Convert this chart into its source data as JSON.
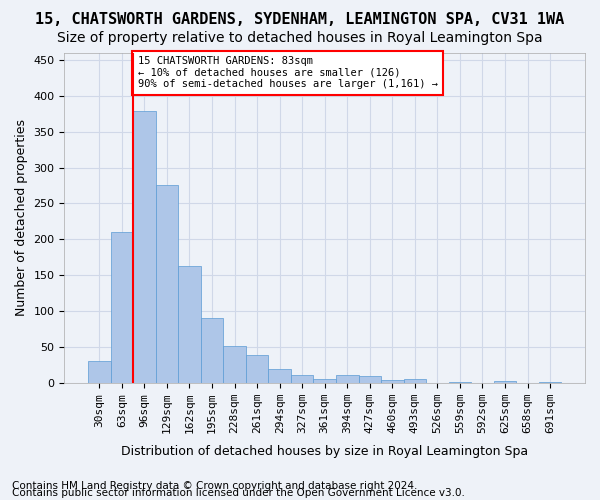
{
  "title": "15, CHATSWORTH GARDENS, SYDENHAM, LEAMINGTON SPA, CV31 1WA",
  "subtitle": "Size of property relative to detached houses in Royal Leamington Spa",
  "xlabel": "Distribution of detached houses by size in Royal Leamington Spa",
  "ylabel": "Number of detached properties",
  "footer1": "Contains HM Land Registry data © Crown copyright and database right 2024.",
  "footer2": "Contains public sector information licensed under the Open Government Licence v3.0.",
  "bar_values": [
    31,
    210,
    378,
    275,
    163,
    90,
    52,
    39,
    20,
    12,
    6,
    11,
    10,
    4,
    6,
    0,
    2,
    0,
    3,
    0,
    2
  ],
  "bin_labels": [
    "30sqm",
    "63sqm",
    "96sqm",
    "129sqm",
    "162sqm",
    "195sqm",
    "228sqm",
    "261sqm",
    "294sqm",
    "327sqm",
    "361sqm",
    "394sqm",
    "427sqm",
    "460sqm",
    "493sqm",
    "526sqm",
    "559sqm",
    "592sqm",
    "625sqm",
    "658sqm",
    "691sqm"
  ],
  "bar_color": "#aec6e8",
  "bar_edge_color": "#5b9bd5",
  "bar_edge_width": 0.5,
  "red_line_x": 1.5,
  "annotation_text": "15 CHATSWORTH GARDENS: 83sqm\n← 10% of detached houses are smaller (126)\n90% of semi-detached houses are larger (1,161) →",
  "annotation_box_color": "white",
  "annotation_box_edge": "red",
  "ylim": [
    0,
    460
  ],
  "yticks": [
    0,
    50,
    100,
    150,
    200,
    250,
    300,
    350,
    400,
    450
  ],
  "grid_color": "#d0d8e8",
  "bg_color": "#eef2f8",
  "title_fontsize": 11,
  "subtitle_fontsize": 10,
  "axis_label_fontsize": 9,
  "tick_fontsize": 8,
  "footer_fontsize": 7.5
}
